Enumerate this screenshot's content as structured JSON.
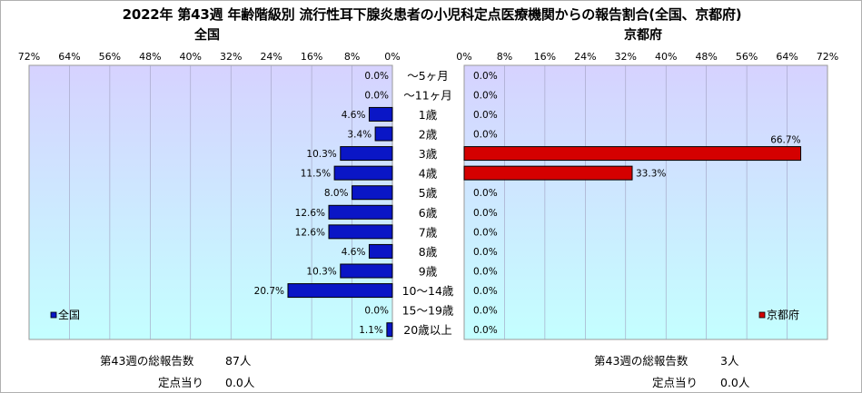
{
  "title": "2022年 第43週 年齢階級別 流行性耳下腺炎患者の小児科定点医療機関からの報告割合(全国、京都府)",
  "colors": {
    "national_bar": "#0a16c6",
    "kyoto_bar": "#d40000",
    "plot_top": "#d6d2ff",
    "plot_bottom": "#c4ffff"
  },
  "chart_data": [
    {
      "type": "bar",
      "orientation": "horizontal",
      "subtitle": "全国",
      "legend": "全国",
      "legend_position": "bottom-left",
      "xlim": [
        0,
        72
      ],
      "x_direction": "reversed",
      "x_ticks": [
        "72%",
        "64%",
        "56%",
        "48%",
        "40%",
        "32%",
        "24%",
        "16%",
        "8%",
        "0%"
      ],
      "categories": [
        "～5ヶ月",
        "～11ヶ月",
        "1歳",
        "2歳",
        "3歳",
        "4歳",
        "5歳",
        "6歳",
        "7歳",
        "8歳",
        "9歳",
        "10～14歳",
        "15～19歳",
        "20歳以上"
      ],
      "values": [
        0.0,
        0.0,
        4.6,
        3.4,
        10.3,
        11.5,
        8.0,
        12.6,
        12.6,
        4.6,
        10.3,
        20.7,
        0.0,
        1.1
      ],
      "labels": [
        "0.0%",
        "0.0%",
        "4.6%",
        "3.4%",
        "10.3%",
        "11.5%",
        "8.0%",
        "12.6%",
        "12.6%",
        "4.6%",
        "10.3%",
        "20.7%",
        "0.0%",
        "1.1%"
      ],
      "grid": true
    },
    {
      "type": "bar",
      "orientation": "horizontal",
      "subtitle": "京都府",
      "legend": "京都府",
      "legend_position": "bottom-right",
      "xlim": [
        0,
        72
      ],
      "x_ticks": [
        "0%",
        "8%",
        "16%",
        "24%",
        "32%",
        "40%",
        "48%",
        "56%",
        "64%",
        "72%"
      ],
      "categories": [
        "～5ヶ月",
        "～11ヶ月",
        "1歳",
        "2歳",
        "3歳",
        "4歳",
        "5歳",
        "6歳",
        "7歳",
        "8歳",
        "9歳",
        "10～14歳",
        "15～19歳",
        "20歳以上"
      ],
      "values": [
        0.0,
        0.0,
        0.0,
        0.0,
        66.7,
        33.3,
        0.0,
        0.0,
        0.0,
        0.0,
        0.0,
        0.0,
        0.0,
        0.0
      ],
      "labels": [
        "0.0%",
        "0.0%",
        "0.0%",
        "0.0%",
        "66.7%",
        "33.3%",
        "0.0%",
        "0.0%",
        "0.0%",
        "0.0%",
        "0.0%",
        "0.0%",
        "0.0%",
        "0.0%"
      ],
      "grid": true
    }
  ],
  "footer": {
    "national": {
      "total_label": "第43週の総報告数",
      "total_value": "87人",
      "per_site_label": "定点当り",
      "per_site_value": "0.0人"
    },
    "kyoto": {
      "total_label": "第43週の総報告数",
      "total_value": "3人",
      "per_site_label": "定点当り",
      "per_site_value": "0.0人"
    }
  }
}
